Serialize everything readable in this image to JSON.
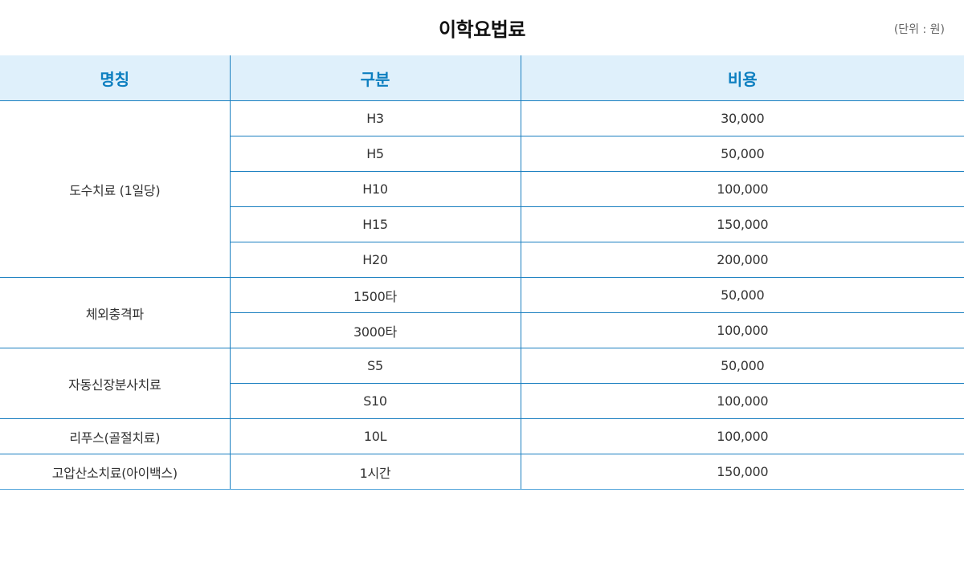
{
  "title": "이학요법료",
  "unit": "(단위 : 원)",
  "headers": [
    "명칭",
    "구분",
    "비용"
  ],
  "groups": [
    {
      "name": "도수치료 (1일당)",
      "rows": [
        {
          "type": "H3",
          "cost": "30,000"
        },
        {
          "type": "H5",
          "cost": "50,000"
        },
        {
          "type": "H10",
          "cost": "100,000"
        },
        {
          "type": "H15",
          "cost": "150,000"
        },
        {
          "type": "H20",
          "cost": "200,000"
        }
      ]
    },
    {
      "name": "체외충격파",
      "rows": [
        {
          "type": "1500타",
          "cost": "50,000"
        },
        {
          "type": "3000타",
          "cost": "100,000"
        }
      ]
    },
    {
      "name": "자동신장분사치료",
      "rows": [
        {
          "type": "S5",
          "cost": "50,000"
        },
        {
          "type": "S10",
          "cost": "100,000"
        }
      ]
    },
    {
      "name": "리푸스(골절치료)",
      "rows": [
        {
          "type": "10L",
          "cost": "100,000"
        }
      ]
    },
    {
      "name": "고압산소치료(아이백스)",
      "rows": [
        {
          "type": "1시간",
          "cost": "150,000"
        }
      ]
    }
  ],
  "colors": {
    "header_bg": "#dff0fb",
    "header_text": "#0d7fc0",
    "border": "#1a7fc0"
  }
}
